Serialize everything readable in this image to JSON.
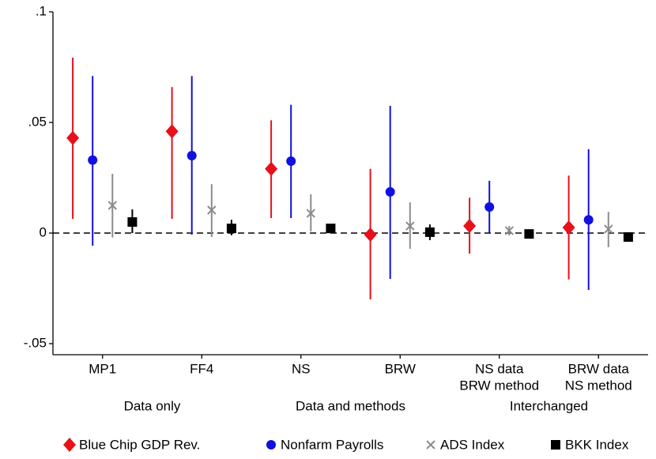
{
  "chart_data": {
    "type": "coefplot",
    "categories": [
      "MP1",
      "FF4",
      "NS",
      "BRW",
      [
        "NS data",
        "BRW method"
      ],
      [
        "BRW data",
        "NS method"
      ]
    ],
    "groups": [
      "Data only",
      "Data and methods",
      "Interchanged"
    ],
    "ylim": [
      -0.055,
      0.1
    ],
    "yticks": [
      {
        "value": -0.05,
        "label": "-.05"
      },
      0,
      {
        "value": 0.05,
        "label": ".05"
      },
      {
        "value": 0.1,
        "label": ".1"
      }
    ],
    "reference_line": 0,
    "series": [
      {
        "name": "Blue Chip GDP Rev.",
        "color": "#e8101a",
        "marker": "diamond",
        "values": [
          0.043,
          0.046,
          0.029,
          -0.0007,
          0.0032,
          0.0025
        ],
        "lower": [
          0.0064,
          0.0064,
          0.0068,
          -0.03,
          -0.0093,
          -0.021
        ],
        "upper": [
          0.0793,
          0.066,
          0.051,
          0.029,
          0.016,
          0.026
        ]
      },
      {
        "name": "Nonfarm Payrolls",
        "color": "#1010e0",
        "marker": "circle",
        "values": [
          0.033,
          0.035,
          0.0325,
          0.0186,
          0.0118,
          0.006
        ],
        "lower": [
          -0.0057,
          -0.0007,
          0.0068,
          -0.0207,
          0,
          -0.0257
        ],
        "upper": [
          0.071,
          0.071,
          0.058,
          0.0575,
          0.0236,
          0.0379
        ]
      },
      {
        "name": "ADS Index",
        "color": "#8c8c8c",
        "marker": "x",
        "values": [
          0.0125,
          0.0104,
          0.0089,
          0.0032,
          0.0011,
          0.0018
        ],
        "lower": [
          -0.002,
          -0.0018,
          0.0007,
          -0.0071,
          -0.0011,
          -0.0064
        ],
        "upper": [
          0.0268,
          0.0221,
          0.0175,
          0.0139,
          0.0032,
          0.0096
        ]
      },
      {
        "name": "BKK Index",
        "color": "#000000",
        "marker": "square",
        "values": [
          0.005,
          0.0021,
          0.0021,
          0.0004,
          -0.0004,
          -0.0018
        ],
        "lower": [
          0,
          -0.001,
          0.0004,
          -0.0032,
          -0.0014,
          -0.0039
        ],
        "upper": [
          0.0107,
          0.006,
          0.0039,
          0.0039,
          0.0007,
          0.0004
        ]
      }
    ]
  }
}
